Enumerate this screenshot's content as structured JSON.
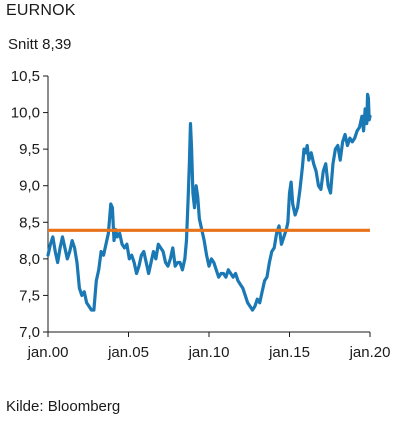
{
  "chart_data": {
    "type": "line",
    "title": "EURNOK",
    "subtitle": "Snitt 8,39",
    "source": "Kilde: Bloomberg",
    "xlim": [
      2000.0,
      2020.0
    ],
    "ylim": [
      7.0,
      10.5
    ],
    "yticks": [
      {
        "value": 10.5,
        "label": "10,5"
      },
      {
        "value": 10.0,
        "label": "10,0"
      },
      {
        "value": 9.5,
        "label": "9,5"
      },
      {
        "value": 9.0,
        "label": "9,0"
      },
      {
        "value": 8.5,
        "label": "8,5"
      },
      {
        "value": 8.0,
        "label": "8,0"
      },
      {
        "value": 7.5,
        "label": "7,5"
      },
      {
        "value": 7.0,
        "label": "7,0"
      }
    ],
    "xticks": [
      {
        "value": 2000,
        "label": "jan.00"
      },
      {
        "value": 2005,
        "label": "jan.05"
      },
      {
        "value": 2010,
        "label": "jan.10"
      },
      {
        "value": 2015,
        "label": "jan.15"
      },
      {
        "value": 2020,
        "label": "jan.20"
      }
    ],
    "average": 8.39,
    "colors": {
      "series": "#1a78b4",
      "average": "#e8731a",
      "axis": "#1a1a1a"
    },
    "series": [
      {
        "x": [
          2000.0,
          2000.15,
          2000.3,
          2000.45,
          2000.6,
          2000.75,
          2000.9,
          2001.05,
          2001.2,
          2001.35,
          2001.5,
          2001.65,
          2001.8,
          2001.95,
          2002.1,
          2002.25,
          2002.4,
          2002.55,
          2002.7,
          2002.85,
          2003.0,
          2003.15,
          2003.3,
          2003.45,
          2003.6,
          2003.75,
          2003.9,
          2004.0,
          2004.1,
          2004.2,
          2004.3,
          2004.45,
          2004.6,
          2004.75,
          2004.9,
          2005.05,
          2005.2,
          2005.35,
          2005.5,
          2005.65,
          2005.8,
          2005.95,
          2006.1,
          2006.25,
          2006.4,
          2006.55,
          2006.7,
          2006.85,
          2007.0,
          2007.15,
          2007.3,
          2007.45,
          2007.6,
          2007.75,
          2007.9,
          2008.05,
          2008.2,
          2008.35,
          2008.5,
          2008.6,
          2008.7,
          2008.78,
          2008.85,
          2008.92,
          2009.0,
          2009.1,
          2009.2,
          2009.3,
          2009.4,
          2009.55,
          2009.7,
          2009.85,
          2010.0,
          2010.15,
          2010.3,
          2010.45,
          2010.6,
          2010.75,
          2010.9,
          2011.05,
          2011.2,
          2011.35,
          2011.5,
          2011.65,
          2011.8,
          2011.95,
          2012.1,
          2012.25,
          2012.4,
          2012.55,
          2012.7,
          2012.85,
          2013.0,
          2013.15,
          2013.3,
          2013.45,
          2013.6,
          2013.75,
          2013.9,
          2014.05,
          2014.2,
          2014.35,
          2014.5,
          2014.65,
          2014.8,
          2014.9,
          2015.0,
          2015.1,
          2015.2,
          2015.35,
          2015.5,
          2015.65,
          2015.8,
          2015.9,
          2016.0,
          2016.1,
          2016.2,
          2016.35,
          2016.5,
          2016.65,
          2016.8,
          2016.95,
          2017.1,
          2017.25,
          2017.4,
          2017.55,
          2017.7,
          2017.85,
          2018.0,
          2018.15,
          2018.3,
          2018.45,
          2018.6,
          2018.75,
          2018.9,
          2019.05,
          2019.2,
          2019.35,
          2019.5,
          2019.6,
          2019.7,
          2019.8,
          2019.85,
          2019.9,
          2019.95,
          2020.0
        ],
        "y": [
          8.05,
          8.2,
          8.3,
          8.1,
          7.95,
          8.15,
          8.3,
          8.15,
          8.0,
          8.1,
          8.25,
          8.15,
          7.95,
          7.6,
          7.5,
          7.55,
          7.4,
          7.35,
          7.3,
          7.3,
          7.7,
          7.85,
          8.1,
          8.05,
          8.2,
          8.35,
          8.75,
          8.7,
          8.25,
          8.4,
          8.3,
          8.35,
          8.2,
          8.15,
          8.2,
          8.0,
          8.05,
          7.95,
          7.8,
          7.9,
          8.05,
          8.1,
          7.95,
          7.8,
          7.95,
          8.1,
          8.0,
          8.2,
          8.15,
          8.1,
          7.95,
          7.9,
          8.0,
          8.15,
          7.9,
          7.95,
          7.95,
          7.85,
          8.0,
          8.25,
          8.8,
          9.3,
          9.85,
          9.5,
          8.9,
          8.7,
          9.0,
          8.85,
          8.55,
          8.4,
          8.25,
          8.05,
          7.9,
          8.0,
          7.95,
          7.85,
          7.75,
          7.8,
          7.8,
          7.75,
          7.85,
          7.8,
          7.75,
          7.8,
          7.7,
          7.65,
          7.6,
          7.5,
          7.4,
          7.35,
          7.3,
          7.35,
          7.45,
          7.4,
          7.55,
          7.7,
          7.75,
          7.95,
          8.1,
          8.15,
          8.35,
          8.45,
          8.2,
          8.3,
          8.4,
          8.5,
          8.9,
          9.05,
          8.75,
          8.6,
          8.7,
          8.95,
          9.25,
          9.5,
          9.45,
          9.55,
          9.35,
          9.45,
          9.3,
          9.2,
          9.0,
          8.95,
          9.2,
          9.3,
          9.0,
          8.9,
          9.3,
          9.5,
          9.55,
          9.35,
          9.6,
          9.7,
          9.55,
          9.65,
          9.6,
          9.65,
          9.75,
          9.8,
          9.95,
          9.75,
          10.05,
          9.85,
          10.25,
          10.2,
          9.9,
          9.95
        ]
      }
    ]
  }
}
